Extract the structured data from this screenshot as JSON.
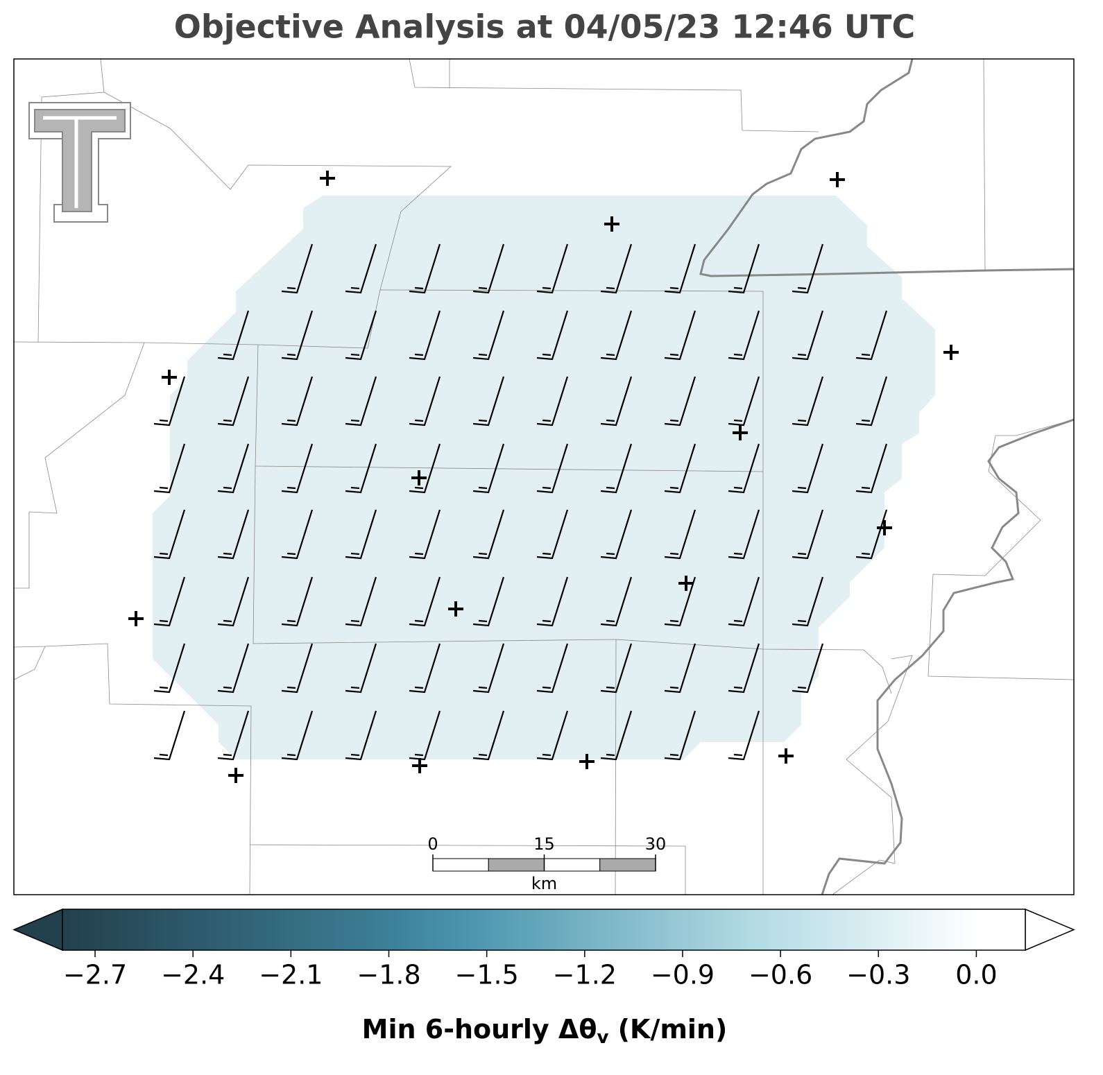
{
  "title": "Objective Analysis at 04/05/23 12:46 UTC",
  "colorbar": {
    "lim": [
      -2.8,
      0.15
    ],
    "ticks": [
      {
        "value": -2.7,
        "label": "−2.7"
      },
      {
        "value": -2.4,
        "label": "−2.4"
      },
      {
        "value": -2.1,
        "label": "−2.1"
      },
      {
        "value": -1.8,
        "label": "−1.8"
      },
      {
        "value": -1.5,
        "label": "−1.5"
      },
      {
        "value": -1.2,
        "label": "−1.2"
      },
      {
        "value": -0.9,
        "label": "−0.9"
      },
      {
        "value": -0.6,
        "label": "−0.6"
      },
      {
        "value": -0.3,
        "label": "−0.3"
      },
      {
        "value": 0.0,
        "label": "0.0"
      }
    ],
    "label": {
      "main": "Min 6-hourly Δθ",
      "subscript": "v",
      "units": " (K/min)"
    }
  },
  "scalebar": {
    "lim": [
      0,
      30
    ],
    "ticks": [
      0,
      15,
      30
    ],
    "unit": "km"
  }
}
